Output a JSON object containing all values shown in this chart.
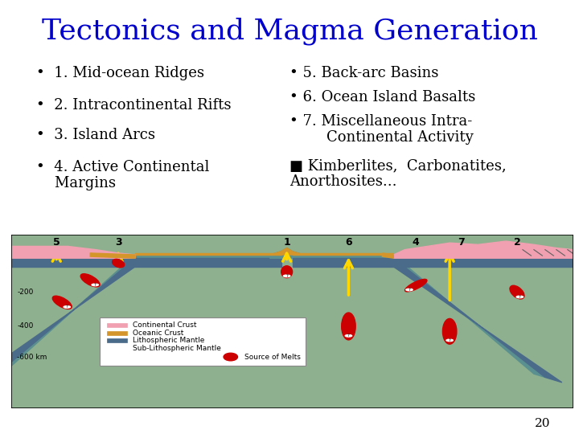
{
  "title": "Tectonics and Magma Generation",
  "title_color": "#0000CC",
  "title_fontsize": 26,
  "bg_color": "#FFFFFF",
  "bullet_left": [
    "1. Mid-ocean Ridges",
    "2. Intracontinental Rifts",
    "3. Island Arcs",
    "4. Active Continental",
    "    Margins"
  ],
  "bullet_right_1": "5. Back-arc Basins",
  "bullet_right_2": "6. Ocean Island Basalts",
  "bullet_right_3a": "7. Miscellaneous Intra-",
  "bullet_right_3b": "        Continental Activity",
  "bullet_right_4a": "■ Kimberlites,  Carbonatites,",
  "bullet_right_4b": "Anorthosites...",
  "page_number": "20",
  "mantle_bg_color": "#8FB08F",
  "litho_color": "#4A6B8A",
  "oceanic_crust_color": "#D4952A",
  "continental_crust_color": "#F0A0B0",
  "melt_color": "#CC0000",
  "arrow_color": "#FFD700",
  "teal_color": "#5B9090"
}
